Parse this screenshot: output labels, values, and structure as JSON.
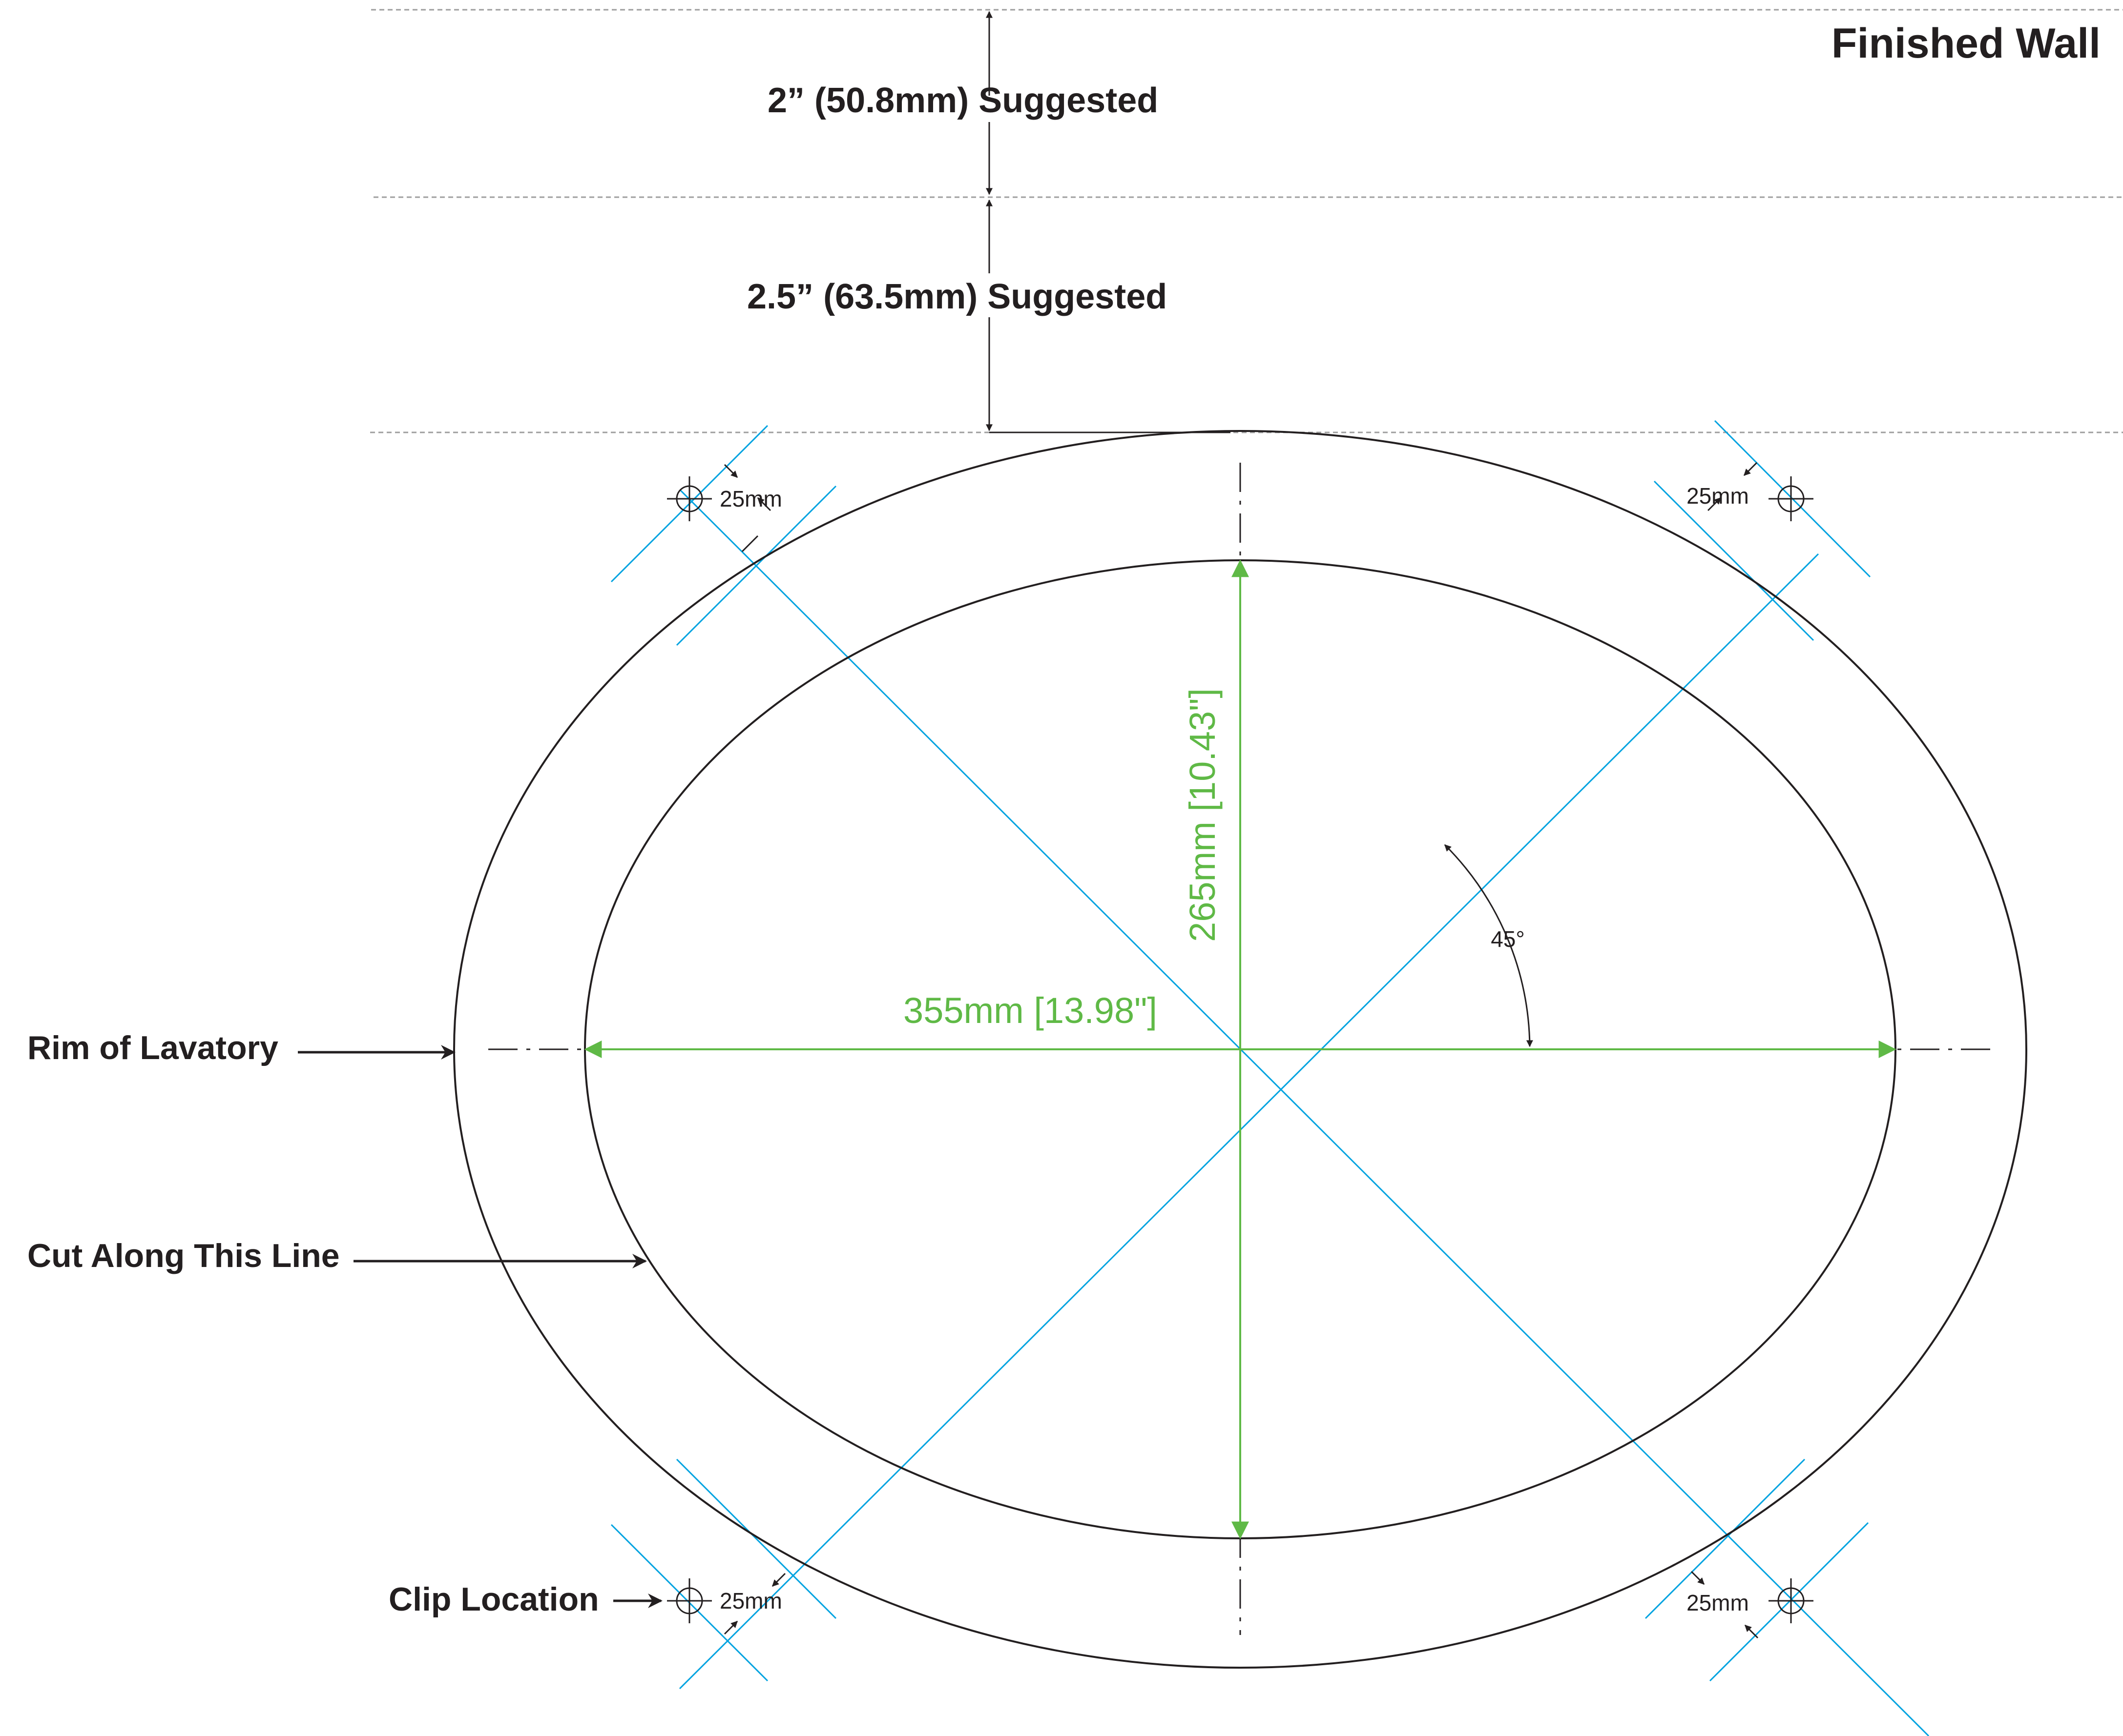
{
  "labels": {
    "finished_wall": "Finished Wall",
    "gap_top": "2” (50.8mm) Suggested",
    "gap_second": "2.5” (63.5mm) Suggested",
    "rim": "Rim of Lavatory",
    "cut": "Cut Along This Line",
    "clip": "Clip Location",
    "angle": "45°",
    "width": "355mm [13.98\"]",
    "height": "265mm [10.43\"]",
    "clip_offset": "25mm"
  },
  "colors": {
    "outline": "#231f20",
    "centerline": "#00a3e0",
    "dimension": "#5fb946",
    "guide": "#9e9e9e"
  }
}
